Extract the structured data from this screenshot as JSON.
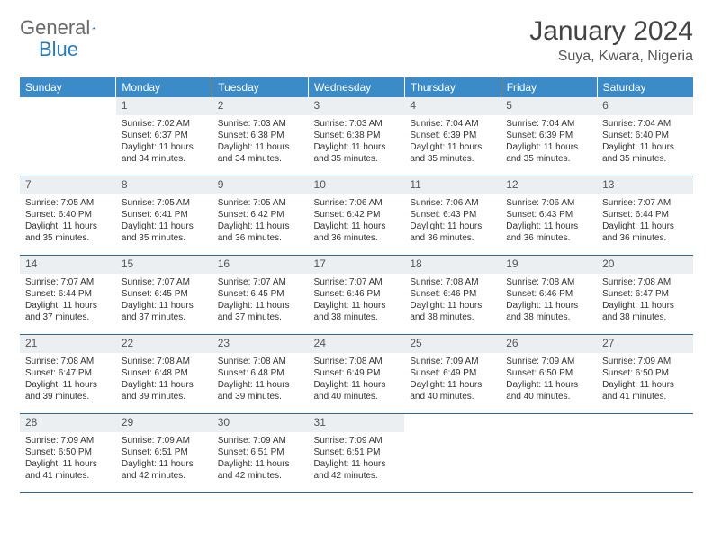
{
  "logo": {
    "text1": "General",
    "text2": "Blue"
  },
  "title": "January 2024",
  "location": "Suya, Kwara, Nigeria",
  "colors": {
    "header_bg": "#3b8bc9",
    "daynum_bg": "#eceff1",
    "border": "#2a6aa0",
    "logo_blue": "#2a7ab9"
  },
  "dayHeaders": [
    "Sunday",
    "Monday",
    "Tuesday",
    "Wednesday",
    "Thursday",
    "Friday",
    "Saturday"
  ],
  "weeks": [
    {
      "nums": [
        "",
        "1",
        "2",
        "3",
        "4",
        "5",
        "6"
      ],
      "cells": [
        null,
        {
          "sunrise": "7:02 AM",
          "sunset": "6:37 PM",
          "daylight": "11 hours and 34 minutes."
        },
        {
          "sunrise": "7:03 AM",
          "sunset": "6:38 PM",
          "daylight": "11 hours and 34 minutes."
        },
        {
          "sunrise": "7:03 AM",
          "sunset": "6:38 PM",
          "daylight": "11 hours and 35 minutes."
        },
        {
          "sunrise": "7:04 AM",
          "sunset": "6:39 PM",
          "daylight": "11 hours and 35 minutes."
        },
        {
          "sunrise": "7:04 AM",
          "sunset": "6:39 PM",
          "daylight": "11 hours and 35 minutes."
        },
        {
          "sunrise": "7:04 AM",
          "sunset": "6:40 PM",
          "daylight": "11 hours and 35 minutes."
        }
      ]
    },
    {
      "nums": [
        "7",
        "8",
        "9",
        "10",
        "11",
        "12",
        "13"
      ],
      "cells": [
        {
          "sunrise": "7:05 AM",
          "sunset": "6:40 PM",
          "daylight": "11 hours and 35 minutes."
        },
        {
          "sunrise": "7:05 AM",
          "sunset": "6:41 PM",
          "daylight": "11 hours and 35 minutes."
        },
        {
          "sunrise": "7:05 AM",
          "sunset": "6:42 PM",
          "daylight": "11 hours and 36 minutes."
        },
        {
          "sunrise": "7:06 AM",
          "sunset": "6:42 PM",
          "daylight": "11 hours and 36 minutes."
        },
        {
          "sunrise": "7:06 AM",
          "sunset": "6:43 PM",
          "daylight": "11 hours and 36 minutes."
        },
        {
          "sunrise": "7:06 AM",
          "sunset": "6:43 PM",
          "daylight": "11 hours and 36 minutes."
        },
        {
          "sunrise": "7:07 AM",
          "sunset": "6:44 PM",
          "daylight": "11 hours and 36 minutes."
        }
      ]
    },
    {
      "nums": [
        "14",
        "15",
        "16",
        "17",
        "18",
        "19",
        "20"
      ],
      "cells": [
        {
          "sunrise": "7:07 AM",
          "sunset": "6:44 PM",
          "daylight": "11 hours and 37 minutes."
        },
        {
          "sunrise": "7:07 AM",
          "sunset": "6:45 PM",
          "daylight": "11 hours and 37 minutes."
        },
        {
          "sunrise": "7:07 AM",
          "sunset": "6:45 PM",
          "daylight": "11 hours and 37 minutes."
        },
        {
          "sunrise": "7:07 AM",
          "sunset": "6:46 PM",
          "daylight": "11 hours and 38 minutes."
        },
        {
          "sunrise": "7:08 AM",
          "sunset": "6:46 PM",
          "daylight": "11 hours and 38 minutes."
        },
        {
          "sunrise": "7:08 AM",
          "sunset": "6:46 PM",
          "daylight": "11 hours and 38 minutes."
        },
        {
          "sunrise": "7:08 AM",
          "sunset": "6:47 PM",
          "daylight": "11 hours and 38 minutes."
        }
      ]
    },
    {
      "nums": [
        "21",
        "22",
        "23",
        "24",
        "25",
        "26",
        "27"
      ],
      "cells": [
        {
          "sunrise": "7:08 AM",
          "sunset": "6:47 PM",
          "daylight": "11 hours and 39 minutes."
        },
        {
          "sunrise": "7:08 AM",
          "sunset": "6:48 PM",
          "daylight": "11 hours and 39 minutes."
        },
        {
          "sunrise": "7:08 AM",
          "sunset": "6:48 PM",
          "daylight": "11 hours and 39 minutes."
        },
        {
          "sunrise": "7:08 AM",
          "sunset": "6:49 PM",
          "daylight": "11 hours and 40 minutes."
        },
        {
          "sunrise": "7:09 AM",
          "sunset": "6:49 PM",
          "daylight": "11 hours and 40 minutes."
        },
        {
          "sunrise": "7:09 AM",
          "sunset": "6:50 PM",
          "daylight": "11 hours and 40 minutes."
        },
        {
          "sunrise": "7:09 AM",
          "sunset": "6:50 PM",
          "daylight": "11 hours and 41 minutes."
        }
      ]
    },
    {
      "nums": [
        "28",
        "29",
        "30",
        "31",
        "",
        "",
        ""
      ],
      "cells": [
        {
          "sunrise": "7:09 AM",
          "sunset": "6:50 PM",
          "daylight": "11 hours and 41 minutes."
        },
        {
          "sunrise": "7:09 AM",
          "sunset": "6:51 PM",
          "daylight": "11 hours and 42 minutes."
        },
        {
          "sunrise": "7:09 AM",
          "sunset": "6:51 PM",
          "daylight": "11 hours and 42 minutes."
        },
        {
          "sunrise": "7:09 AM",
          "sunset": "6:51 PM",
          "daylight": "11 hours and 42 minutes."
        },
        null,
        null,
        null
      ]
    }
  ],
  "labels": {
    "sunrise": "Sunrise:",
    "sunset": "Sunset:",
    "daylight": "Daylight:"
  }
}
